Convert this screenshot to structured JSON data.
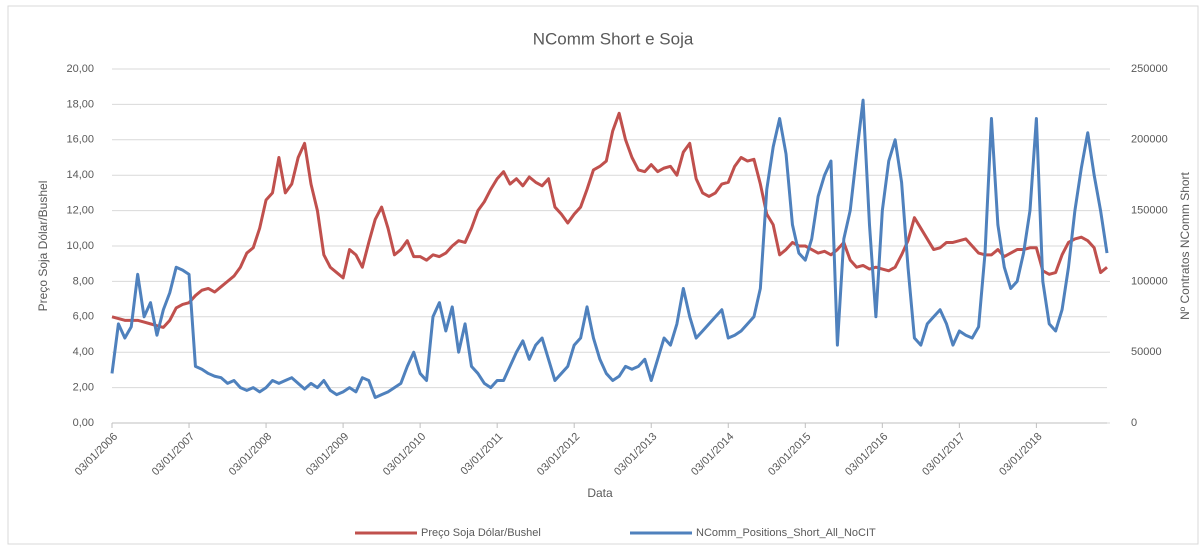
{
  "chart_data": {
    "type": "line",
    "title": "NComm Short e Soja",
    "x_label": "Data",
    "y_label": "Preço Soja Dólar/Bushel",
    "y2_label": "Nº Contratos NComm Short",
    "x": [
      "01/2006",
      "02/2006",
      "03/2006",
      "04/2006",
      "05/2006",
      "06/2006",
      "07/2006",
      "08/2006",
      "09/2006",
      "10/2006",
      "11/2006",
      "12/2006",
      "01/2007",
      "02/2007",
      "03/2007",
      "04/2007",
      "05/2007",
      "06/2007",
      "07/2007",
      "08/2007",
      "09/2007",
      "10/2007",
      "11/2007",
      "12/2007",
      "01/2008",
      "02/2008",
      "03/2008",
      "04/2008",
      "05/2008",
      "06/2008",
      "07/2008",
      "08/2008",
      "09/2008",
      "10/2008",
      "11/2008",
      "12/2008",
      "01/2009",
      "02/2009",
      "03/2009",
      "04/2009",
      "05/2009",
      "06/2009",
      "07/2009",
      "08/2009",
      "09/2009",
      "10/2009",
      "11/2009",
      "12/2009",
      "01/2010",
      "02/2010",
      "03/2010",
      "04/2010",
      "05/2010",
      "06/2010",
      "07/2010",
      "08/2010",
      "09/2010",
      "10/2010",
      "11/2010",
      "12/2010",
      "01/2011",
      "02/2011",
      "03/2011",
      "04/2011",
      "05/2011",
      "06/2011",
      "07/2011",
      "08/2011",
      "09/2011",
      "10/2011",
      "11/2011",
      "12/2011",
      "01/2012",
      "02/2012",
      "03/2012",
      "04/2012",
      "05/2012",
      "06/2012",
      "07/2012",
      "08/2012",
      "09/2012",
      "10/2012",
      "11/2012",
      "12/2012",
      "01/2013",
      "02/2013",
      "03/2013",
      "04/2013",
      "05/2013",
      "06/2013",
      "07/2013",
      "08/2013",
      "09/2013",
      "10/2013",
      "11/2013",
      "12/2013",
      "01/2014",
      "02/2014",
      "03/2014",
      "04/2014",
      "05/2014",
      "06/2014",
      "07/2014",
      "08/2014",
      "09/2014",
      "10/2014",
      "11/2014",
      "12/2014",
      "01/2015",
      "02/2015",
      "03/2015",
      "04/2015",
      "05/2015",
      "06/2015",
      "07/2015",
      "08/2015",
      "09/2015",
      "10/2015",
      "11/2015",
      "12/2015",
      "01/2016",
      "02/2016",
      "03/2016",
      "04/2016",
      "05/2016",
      "06/2016",
      "07/2016",
      "08/2016",
      "09/2016",
      "10/2016",
      "11/2016",
      "12/2016",
      "01/2017",
      "02/2017",
      "03/2017",
      "04/2017",
      "05/2017",
      "06/2017",
      "07/2017",
      "08/2017",
      "09/2017",
      "10/2017",
      "11/2017",
      "12/2017",
      "01/2018",
      "02/2018",
      "03/2018",
      "04/2018",
      "05/2018",
      "06/2018",
      "07/2018",
      "08/2018",
      "09/2018",
      "10/2018",
      "11/2018",
      "12/2018"
    ],
    "series": [
      {
        "name": "Preço Soja Dólar/Bushel",
        "color": "#c0504d",
        "axis": "y",
        "values": [
          6.0,
          5.9,
          5.8,
          5.8,
          5.8,
          5.7,
          5.6,
          5.5,
          5.4,
          5.8,
          6.5,
          6.7,
          6.8,
          7.2,
          7.5,
          7.6,
          7.4,
          7.7,
          8.0,
          8.3,
          8.8,
          9.6,
          9.9,
          11.0,
          12.6,
          13.0,
          15.0,
          13.0,
          13.5,
          15.0,
          15.8,
          13.5,
          12.0,
          9.5,
          8.8,
          8.5,
          8.2,
          9.8,
          9.5,
          8.8,
          10.2,
          11.5,
          12.2,
          11.0,
          9.5,
          9.8,
          10.3,
          9.4,
          9.4,
          9.2,
          9.5,
          9.4,
          9.6,
          10.0,
          10.3,
          10.2,
          11.0,
          12.0,
          12.5,
          13.2,
          13.8,
          14.2,
          13.5,
          13.8,
          13.4,
          13.9,
          13.6,
          13.4,
          13.8,
          12.2,
          11.8,
          11.3,
          11.8,
          12.2,
          13.2,
          14.3,
          14.5,
          14.8,
          16.5,
          17.5,
          16.0,
          15.0,
          14.3,
          14.2,
          14.6,
          14.2,
          14.4,
          14.5,
          14.0,
          15.3,
          15.8,
          13.8,
          13.0,
          12.8,
          13.0,
          13.5,
          13.6,
          14.5,
          15.0,
          14.8,
          14.9,
          13.5,
          11.8,
          11.2,
          9.5,
          9.8,
          10.2,
          10.0,
          10.0,
          9.8,
          9.6,
          9.7,
          9.5,
          9.8,
          10.2,
          9.2,
          8.8,
          8.9,
          8.7,
          8.8,
          8.7,
          8.6,
          8.8,
          9.5,
          10.3,
          11.6,
          11.0,
          10.4,
          9.8,
          9.9,
          10.2,
          10.2,
          10.3,
          10.4,
          10.0,
          9.6,
          9.5,
          9.5,
          9.8,
          9.4,
          9.6,
          9.8,
          9.8,
          9.9,
          9.9,
          8.6,
          8.4,
          8.5,
          9.5,
          10.2,
          10.4,
          10.5,
          10.3,
          9.9,
          8.5,
          8.8
        ]
      },
      {
        "name": "NComm_Positions_Short_All_NoCIT",
        "color": "#4f81bd",
        "axis": "y2",
        "values": [
          35000,
          70000,
          60000,
          68000,
          105000,
          75000,
          85000,
          62000,
          80000,
          92000,
          110000,
          108000,
          105000,
          40000,
          38000,
          35000,
          33000,
          32000,
          28000,
          30000,
          25000,
          23000,
          25000,
          22000,
          25000,
          30000,
          28000,
          30000,
          32000,
          28000,
          24000,
          28000,
          25000,
          30000,
          23000,
          20000,
          22000,
          25000,
          22000,
          32000,
          30000,
          18000,
          20000,
          22000,
          25000,
          28000,
          40000,
          50000,
          35000,
          30000,
          75000,
          85000,
          65000,
          82000,
          50000,
          70000,
          40000,
          35000,
          28000,
          25000,
          30000,
          30000,
          40000,
          50000,
          58000,
          45000,
          55000,
          60000,
          45000,
          30000,
          35000,
          40000,
          55000,
          60000,
          82000,
          60000,
          45000,
          35000,
          30000,
          33000,
          40000,
          38000,
          40000,
          45000,
          30000,
          45000,
          60000,
          55000,
          70000,
          95000,
          75000,
          60000,
          65000,
          70000,
          75000,
          80000,
          60000,
          62000,
          65000,
          70000,
          75000,
          95000,
          165000,
          195000,
          215000,
          190000,
          140000,
          120000,
          115000,
          130000,
          160000,
          175000,
          185000,
          55000,
          130000,
          150000,
          190000,
          228000,
          140000,
          75000,
          150000,
          185000,
          200000,
          170000,
          110000,
          60000,
          55000,
          70000,
          75000,
          80000,
          70000,
          55000,
          65000,
          62000,
          60000,
          68000,
          120000,
          215000,
          140000,
          110000,
          95000,
          100000,
          120000,
          150000,
          215000,
          100000,
          70000,
          65000,
          80000,
          110000,
          150000,
          180000,
          205000,
          175000,
          150000,
          120000
        ]
      }
    ],
    "xlim": [
      "01/2006",
      "12/2018"
    ],
    "xticks": [
      "03/01/2006",
      "03/01/2007",
      "03/01/2008",
      "03/01/2009",
      "03/01/2010",
      "03/01/2011",
      "03/01/2012",
      "03/01/2013",
      "03/01/2014",
      "03/01/2015",
      "03/01/2016",
      "03/01/2017",
      "03/01/2018"
    ],
    "ylim": [
      0,
      20
    ],
    "yticks": [
      {
        "value": 0,
        "label": "0,00"
      },
      {
        "value": 2,
        "label": "2,00"
      },
      {
        "value": 4,
        "label": "4,00"
      },
      {
        "value": 6,
        "label": "6,00"
      },
      {
        "value": 8,
        "label": "8,00"
      },
      {
        "value": 10,
        "label": "10,00"
      },
      {
        "value": 12,
        "label": "12,00"
      },
      {
        "value": 14,
        "label": "14,00"
      },
      {
        "value": 16,
        "label": "16,00"
      },
      {
        "value": 18,
        "label": "18,00"
      },
      {
        "value": 20,
        "label": "20,00"
      }
    ],
    "y2lim": [
      0,
      250000
    ],
    "y2ticks": [
      0,
      50000,
      100000,
      150000,
      200000,
      250000
    ],
    "grid": true,
    "legend": "bottom"
  }
}
